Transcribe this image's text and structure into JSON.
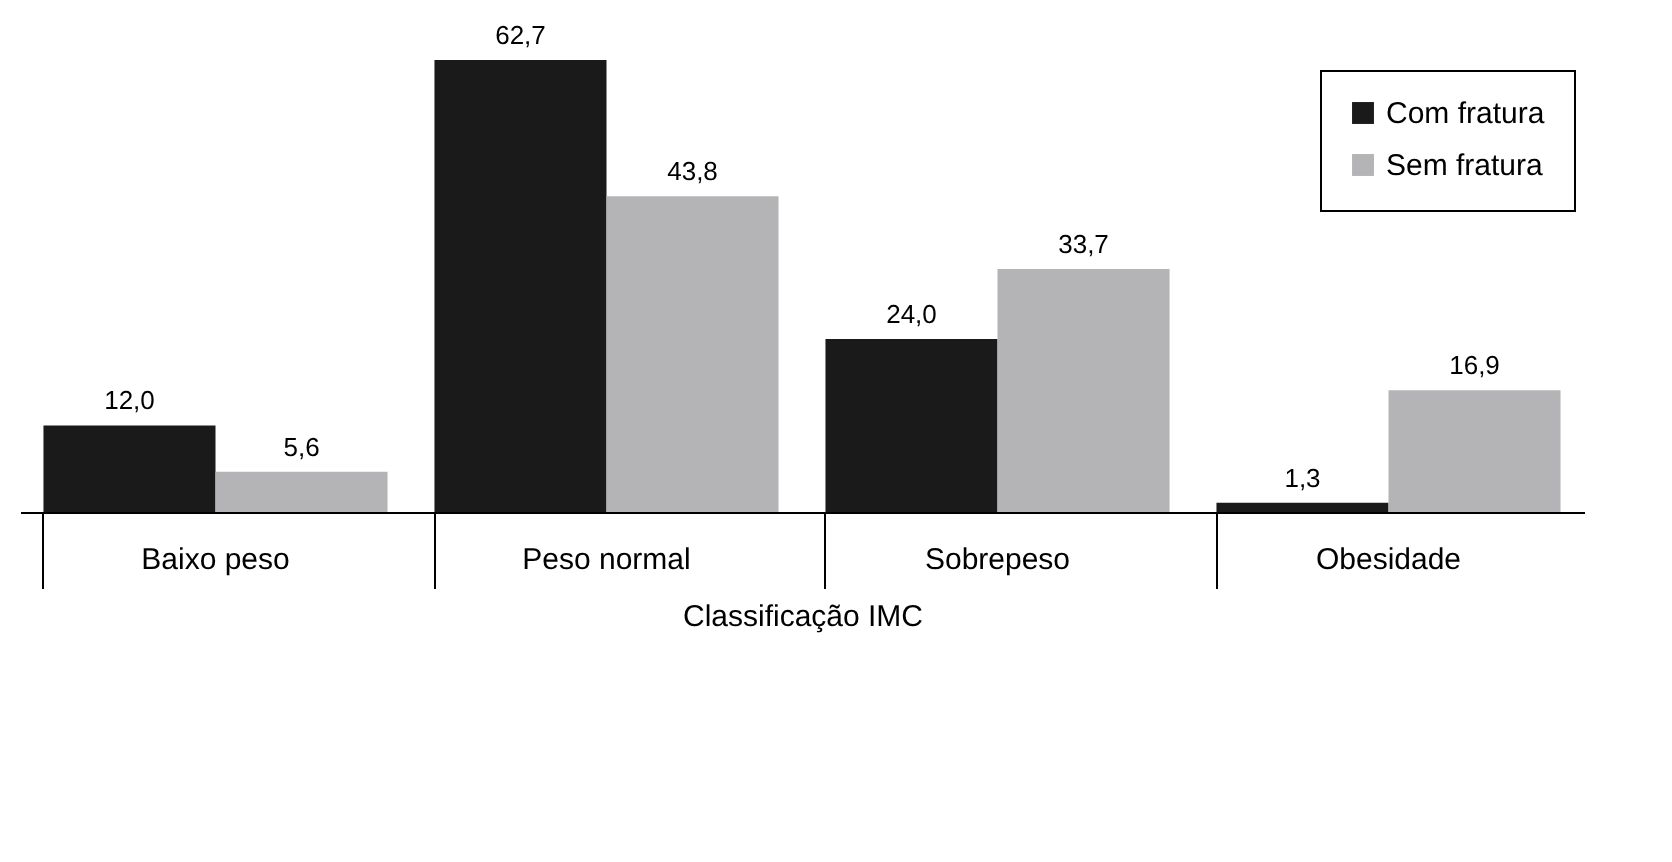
{
  "chart_data": {
    "type": "bar",
    "xlabel": "Classificação IMC",
    "categories": [
      "Baixo peso",
      "Peso normal",
      "Sobrepeso",
      "Obesidade"
    ],
    "series": [
      {
        "name": "Com fratura",
        "color": "#1a1a1a",
        "values": [
          12.0,
          62.7,
          24.0,
          1.3
        ],
        "value_labels": [
          "12,0",
          "62,7",
          "24,0",
          "1,3"
        ]
      },
      {
        "name": "Sem fratura",
        "color": "#b4b4b6",
        "values": [
          5.6,
          43.8,
          33.7,
          16.9
        ],
        "value_labels": [
          "5,6",
          "43,8",
          "33,7",
          "16,9"
        ]
      }
    ],
    "legend": "top right"
  }
}
